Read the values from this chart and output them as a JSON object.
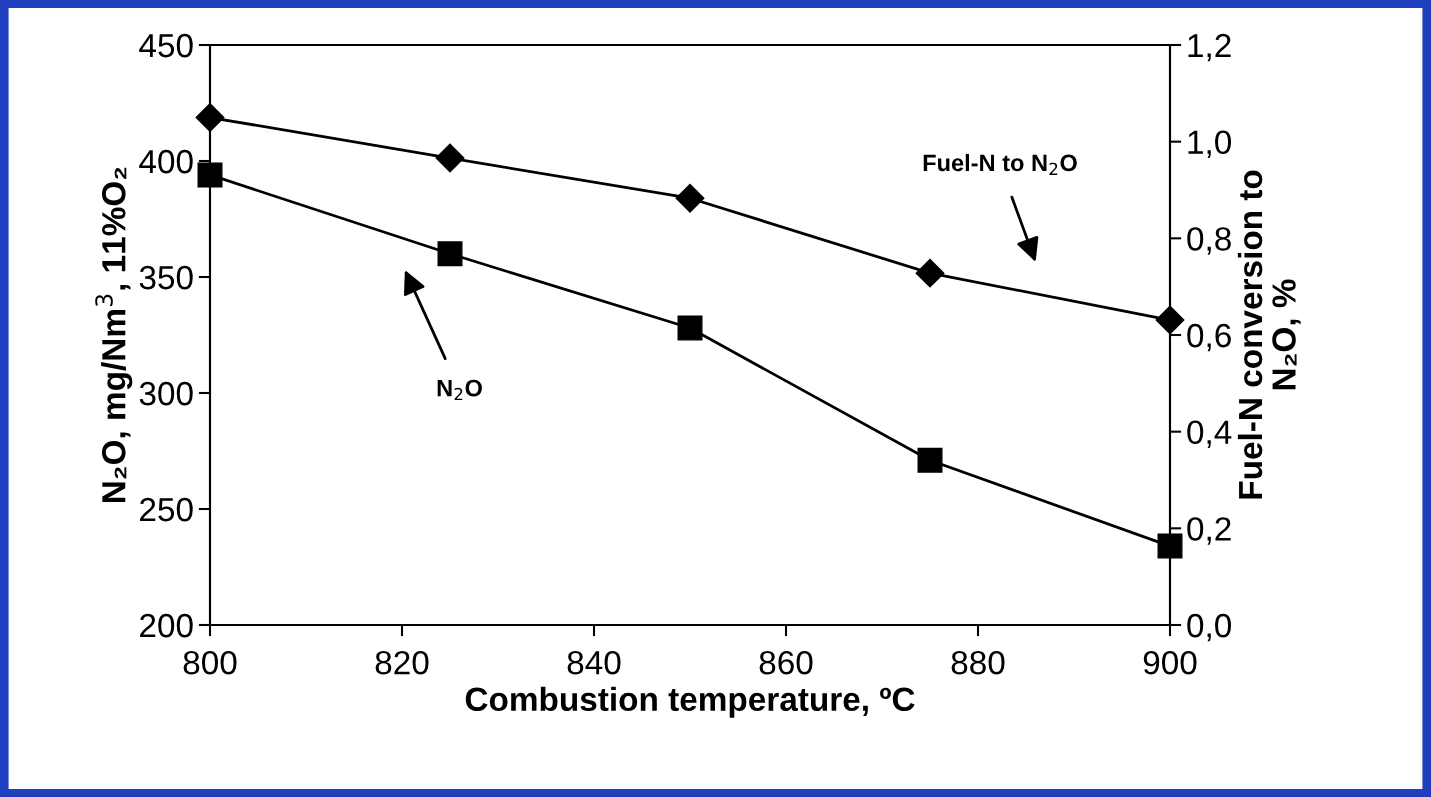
{
  "chart_data": {
    "type": "line",
    "xlabel": "Combustion temperature, ºC",
    "ylabel": "N₂O, mg/Nm$^{3}$, 11%O₂",
    "y2label": "Fuel-N conversion to\nN₂O, %",
    "x": [
      800,
      825,
      850,
      875,
      900
    ],
    "series": [
      {
        "color": "#000000",
        "marker": "square",
        "values": [
          394,
          360,
          328,
          271,
          234
        ]
      },
      {
        "color": "#000000",
        "marker": "diamond",
        "axis": "y2",
        "values": [
          1.05,
          0.966,
          0.883,
          0.728,
          0.631
        ]
      }
    ],
    "xlim": [
      800,
      900
    ],
    "xticks": [
      800,
      820,
      840,
      860,
      880,
      900
    ],
    "ylim": [
      200,
      450
    ],
    "yticks": [
      200,
      250,
      300,
      350,
      400,
      450
    ],
    "y2lim": [
      0,
      1.2
    ],
    "y2ticks": [
      {
        "value": 0,
        "label": "0,0"
      },
      {
        "value": 0.2,
        "label": "0,2"
      },
      {
        "value": 0.4,
        "label": "0,4"
      },
      {
        "value": 0.6,
        "label": "0,6"
      },
      {
        "value": 0.8,
        "label": "0,8"
      },
      {
        "value": 1.0,
        "label": "1,0"
      },
      {
        "value": 1.2,
        "label": "1,2"
      }
    ],
    "annotations": [
      "N$_{2}$O",
      "Fuel-N to N$_{2}$O"
    ],
    "grid": false,
    "legend": false,
    "line_style": "solid"
  }
}
